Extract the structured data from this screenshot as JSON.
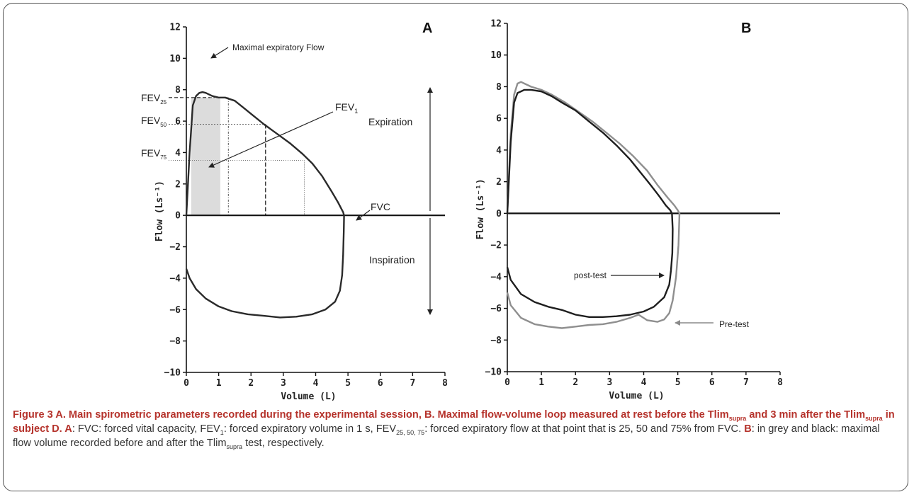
{
  "chart_data": [
    {
      "id": "A",
      "type": "line",
      "panel_label": "A",
      "xlabel": "Volume (L)",
      "ylabel": "Flow (Ls⁻¹)",
      "xlim": [
        0,
        8
      ],
      "ylim": [
        -10,
        12
      ],
      "xticks": [
        0,
        1,
        2,
        3,
        4,
        5,
        6,
        7,
        8
      ],
      "yticks": [
        -10,
        -8,
        -6,
        -4,
        -2,
        0,
        2,
        4,
        6,
        8,
        10,
        12
      ],
      "series": [
        {
          "color": "#2a2a2a",
          "x": [
            0.0,
            0.05,
            0.1,
            0.2,
            0.3,
            0.4,
            0.5,
            0.6,
            0.8,
            1.0,
            1.2,
            1.5,
            1.8,
            2.1,
            2.4,
            2.8,
            3.2,
            3.6,
            3.9,
            4.2,
            4.5,
            4.7,
            4.8,
            4.85,
            4.88,
            4.87,
            4.85,
            4.82,
            4.75,
            4.6,
            4.3,
            3.9,
            3.4,
            2.9,
            2.4,
            1.9,
            1.4,
            1.0,
            0.6,
            0.3,
            0.1,
            0.0
          ],
          "y": [
            0.0,
            2.0,
            4.0,
            7.0,
            7.6,
            7.8,
            7.85,
            7.8,
            7.6,
            7.5,
            7.5,
            7.3,
            6.8,
            6.3,
            5.8,
            5.2,
            4.6,
            3.9,
            3.3,
            2.5,
            1.5,
            0.8,
            0.4,
            0.2,
            0.0,
            -1.0,
            -2.5,
            -3.8,
            -4.8,
            -5.5,
            -6.0,
            -6.3,
            -6.45,
            -6.5,
            -6.4,
            -6.3,
            -6.1,
            -5.8,
            -5.3,
            -4.7,
            -4.0,
            -3.4
          ]
        }
      ],
      "shaded_region": {
        "x": [
          0.15,
          1.05
        ],
        "y": [
          0,
          7.5
        ]
      },
      "reference_lines": {
        "fev25": {
          "flow": 7.5,
          "volume": 1.3
        },
        "fev50": {
          "flow": 5.8,
          "volume": 2.45
        },
        "fev75": {
          "flow": 3.5,
          "volume": 3.65
        }
      },
      "annotations": {
        "max_flow": "Maximal expiratory Flow",
        "fev1": "FEV",
        "fev1_sub": "1",
        "fvc": "FVC",
        "fev25": "FEV",
        "fev25_sub": "25",
        "fev50": "FEV",
        "fev50_sub": "50",
        "fev75": "FEV",
        "fev75_sub": "75",
        "expiration": "Expiration",
        "inspiration": "Inspiration"
      }
    },
    {
      "id": "B",
      "type": "line",
      "panel_label": "B",
      "xlabel": "Volume (L)",
      "ylabel": "Flow (Ls⁻¹)",
      "xlim": [
        0,
        8
      ],
      "ylim": [
        -10,
        12
      ],
      "xticks": [
        0,
        1,
        2,
        3,
        4,
        5,
        6,
        7,
        8
      ],
      "yticks": [
        -10,
        -8,
        -6,
        -4,
        -2,
        0,
        2,
        4,
        6,
        8,
        10,
        12
      ],
      "series": [
        {
          "name": "Pre-test",
          "color": "#8f8f8f",
          "x": [
            0.0,
            0.1,
            0.2,
            0.3,
            0.4,
            0.5,
            0.7,
            1.0,
            1.3,
            1.7,
            2.1,
            2.5,
            2.9,
            3.3,
            3.7,
            4.1,
            4.4,
            4.7,
            4.9,
            5.0,
            5.05,
            5.02,
            4.95,
            4.85,
            4.75,
            4.6,
            4.4,
            4.1,
            3.85,
            3.6,
            3.2,
            2.8,
            2.4,
            2.0,
            1.6,
            1.2,
            0.8,
            0.4,
            0.1,
            0.0
          ],
          "y": [
            0.0,
            5.0,
            7.5,
            8.2,
            8.3,
            8.2,
            8.0,
            7.8,
            7.5,
            7.0,
            6.4,
            5.8,
            5.1,
            4.4,
            3.6,
            2.7,
            1.8,
            1.0,
            0.5,
            0.2,
            0.0,
            -2.0,
            -4.0,
            -5.5,
            -6.3,
            -6.7,
            -6.85,
            -6.75,
            -6.4,
            -6.6,
            -6.85,
            -7.0,
            -7.05,
            -7.15,
            -7.25,
            -7.15,
            -7.0,
            -6.6,
            -5.8,
            -5.0
          ]
        },
        {
          "name": "Post-test",
          "color": "#1e1e1e",
          "x": [
            0.0,
            0.1,
            0.2,
            0.3,
            0.5,
            0.7,
            1.0,
            1.3,
            1.6,
            2.0,
            2.4,
            2.8,
            3.2,
            3.6,
            3.9,
            4.2,
            4.45,
            4.65,
            4.78,
            4.83,
            4.85,
            4.84,
            4.8,
            4.75,
            4.6,
            4.3,
            4.0,
            3.6,
            3.2,
            2.8,
            2.4,
            2.0,
            1.6,
            1.2,
            0.8,
            0.4,
            0.1,
            0.0
          ],
          "y": [
            0.0,
            4.5,
            7.0,
            7.6,
            7.8,
            7.8,
            7.7,
            7.4,
            7.0,
            6.5,
            5.8,
            5.1,
            4.3,
            3.4,
            2.6,
            1.8,
            1.1,
            0.5,
            0.2,
            0.0,
            -1.0,
            -2.5,
            -3.6,
            -4.5,
            -5.3,
            -5.9,
            -6.2,
            -6.4,
            -6.5,
            -6.55,
            -6.55,
            -6.4,
            -6.1,
            -5.9,
            -5.6,
            -5.1,
            -4.2,
            -3.4
          ]
        }
      ],
      "annotations": {
        "post": "post-test",
        "pre": "Pre-test"
      }
    }
  ],
  "caption": {
    "lead": "Figure 3 A. Main spirometric parameters recorded during the experimental session, B. Maximal flow-volume loop measured at rest before the Tlim",
    "lead_sub1": "supra",
    "lead_mid": " and 3 min after the Tlim",
    "lead_sub2": "supra",
    "lead_end": " in subject D. ",
    "a_label": "A",
    "a_text1": ": FVC: forced vital capacity, FEV",
    "a_sub1": "1",
    "a_text2": ": forced expiratory volume in 1 s, FEV",
    "a_sub2": "25, 50, 75",
    "a_text3": ": forced expiratory flow at that point that is 25, 50 and 75% from FVC. ",
    "b_label": "B",
    "b_text1": ": in grey and black: maximal flow volume recorded before and after the Tlim",
    "b_sub1": "supra",
    "b_text2": " test, respectively."
  }
}
